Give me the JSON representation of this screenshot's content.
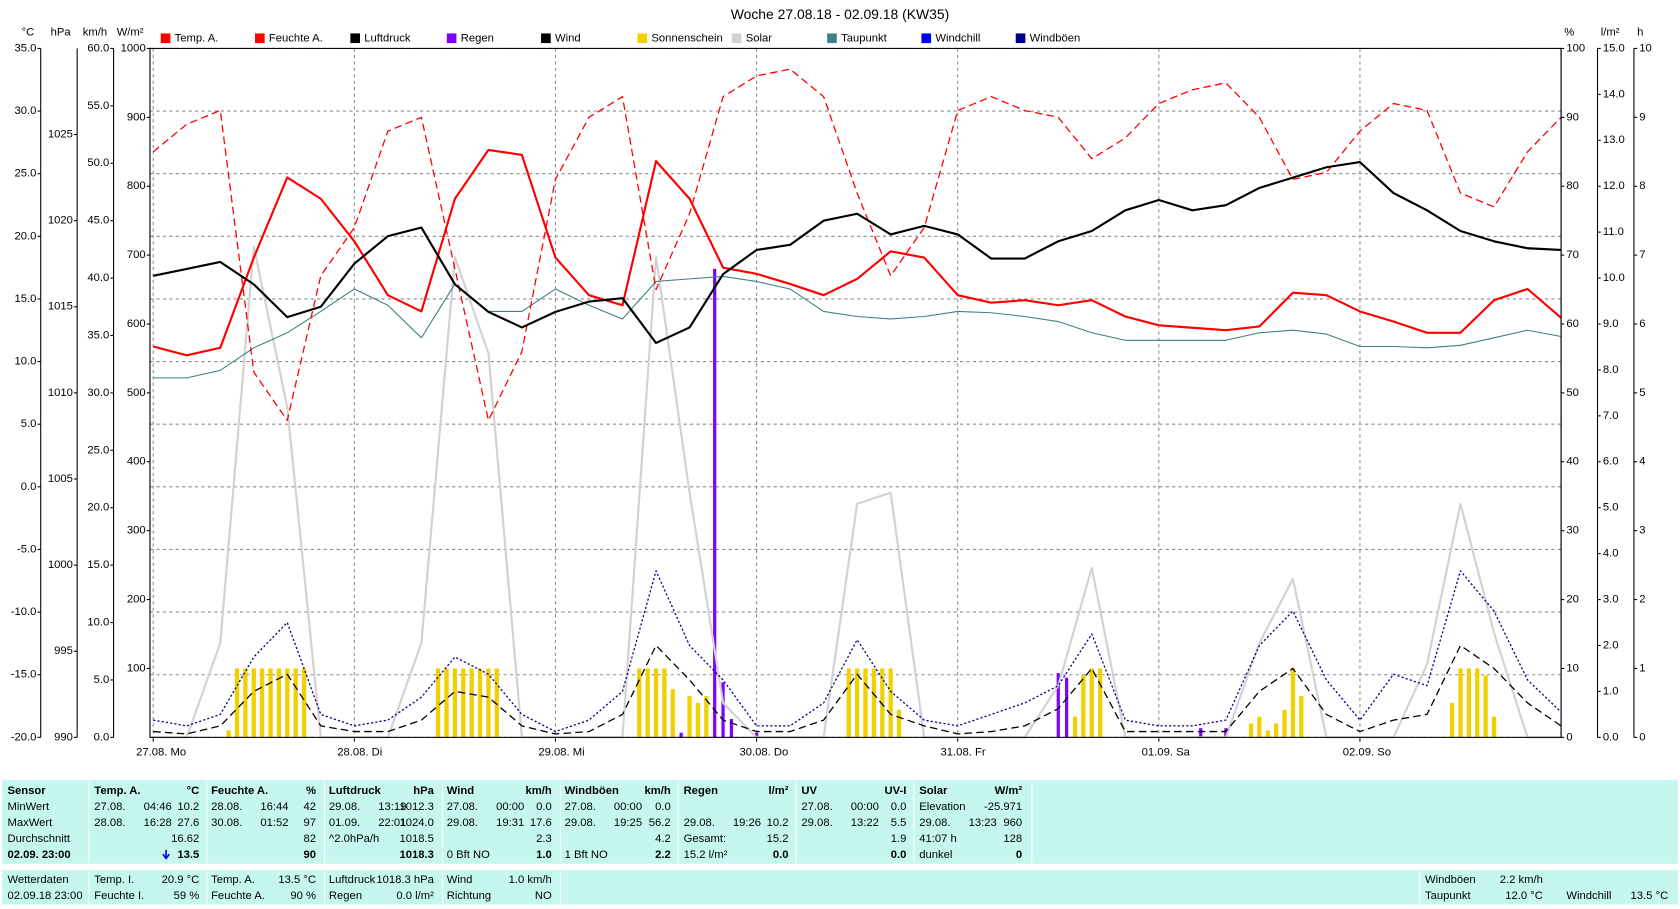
{
  "chart_data": {
    "type": "line",
    "title": "Woche 27.08.18 - 02.09.18 (KW35)",
    "x": [
      0,
      4,
      8,
      12,
      16,
      20,
      24,
      28,
      32,
      36,
      40,
      44,
      48,
      52,
      56,
      60,
      64,
      68,
      72,
      76,
      80,
      84,
      88,
      92,
      96,
      100,
      104,
      108,
      112,
      116,
      120,
      124,
      128,
      132,
      136,
      140,
      144,
      148,
      152,
      156,
      160,
      164,
      168
    ],
    "xlim": [
      0,
      168
    ],
    "xticks": [
      {
        "value": 0,
        "label": "27.08. Mo"
      },
      {
        "value": 24,
        "label": "28.08. Di"
      },
      {
        "value": 48,
        "label": "29.08. Mi"
      },
      {
        "value": 72,
        "label": "30.08. Do"
      },
      {
        "value": 96,
        "label": "31.08. Fr"
      },
      {
        "value": 120,
        "label": "01.09. Sa"
      },
      {
        "value": 144,
        "label": "02.09. So"
      }
    ],
    "grid": true,
    "axes": [
      {
        "id": "temp",
        "label": "°C",
        "side": "left",
        "color": "#ff0000",
        "grid": true,
        "lim": [
          -20,
          35
        ],
        "ticks": [
          {
            "value": -20,
            "label": "-20.0"
          },
          {
            "value": -15,
            "label": "-15.0"
          },
          {
            "value": -10,
            "label": "-10.0"
          },
          {
            "value": -5,
            "label": "-5.0"
          },
          {
            "value": 0,
            "label": "0.0"
          },
          {
            "value": 5,
            "label": "5.0"
          },
          {
            "value": 10,
            "label": "10.0"
          },
          {
            "value": 15,
            "label": "15.0"
          },
          {
            "value": 20,
            "label": "20.0"
          },
          {
            "value": 25,
            "label": "25.0"
          },
          {
            "value": 30,
            "label": "30.0"
          },
          {
            "value": 35,
            "label": "35.0"
          }
        ]
      },
      {
        "id": "press",
        "label": "hPa",
        "side": "left",
        "color": "#000000",
        "grid": false,
        "lim": [
          990,
          1030
        ],
        "ticks": [
          990,
          995,
          1000,
          1005,
          1010,
          1015,
          1020,
          1025
        ]
      },
      {
        "id": "wind",
        "label": "km/h",
        "side": "left",
        "color": "#000000",
        "grid": false,
        "lim": [
          0,
          60
        ],
        "ticks": [
          {
            "value": 0,
            "label": "0.0"
          },
          {
            "value": 5,
            "label": "5.0"
          },
          {
            "value": 10,
            "label": "10.0"
          },
          {
            "value": 15,
            "label": "15.0"
          },
          {
            "value": 20,
            "label": "20.0"
          },
          {
            "value": 25,
            "label": "25.0"
          },
          {
            "value": 30,
            "label": "30.0"
          },
          {
            "value": 35,
            "label": "35.0"
          },
          {
            "value": 40,
            "label": "40.0"
          },
          {
            "value": 45,
            "label": "45.0"
          },
          {
            "value": 50,
            "label": "50.0"
          },
          {
            "value": 55,
            "label": "55.0"
          },
          {
            "value": 60,
            "label": "60.0"
          }
        ]
      },
      {
        "id": "solar",
        "label": "W/m²",
        "side": "left",
        "color": "#c8c8c8",
        "grid": false,
        "lim": [
          0,
          1000
        ],
        "ticks": [
          100,
          200,
          300,
          400,
          500,
          600,
          700,
          800,
          900,
          1000
        ]
      },
      {
        "id": "hum",
        "label": "%",
        "side": "right",
        "color": "#ff0000",
        "grid": false,
        "lim": [
          0,
          100
        ],
        "ticks": [
          0,
          10,
          20,
          30,
          40,
          50,
          60,
          70,
          80,
          90,
          100
        ]
      },
      {
        "id": "rain",
        "label": "l/m²",
        "side": "right",
        "color": "#8000ff",
        "grid": false,
        "lim": [
          0,
          15
        ],
        "ticks": [
          {
            "value": 0,
            "label": "0.0"
          },
          {
            "value": 1,
            "label": "1.0"
          },
          {
            "value": 2,
            "label": "2.0"
          },
          {
            "value": 3,
            "label": "3.0"
          },
          {
            "value": 4,
            "label": "4.0"
          },
          {
            "value": 5,
            "label": "5.0"
          },
          {
            "value": 6,
            "label": "6.0"
          },
          {
            "value": 7,
            "label": "7.0"
          },
          {
            "value": 8,
            "label": "8.0"
          },
          {
            "value": 9,
            "label": "9.0"
          },
          {
            "value": 10,
            "label": "10.0"
          },
          {
            "value": 11,
            "label": "11.0"
          },
          {
            "value": 12,
            "label": "12.0"
          },
          {
            "value": 13,
            "label": "13.0"
          },
          {
            "value": 14,
            "label": "14.0"
          },
          {
            "value": 15,
            "label": "15.0"
          }
        ]
      },
      {
        "id": "sun",
        "label": "h",
        "side": "right",
        "color": "#e0c000",
        "grid": false,
        "lim": [
          0,
          10
        ],
        "ticks": [
          0,
          1,
          2,
          3,
          4,
          5,
          6,
          7,
          8,
          9,
          10
        ]
      }
    ],
    "series": [
      {
        "name": "Temp. A.",
        "color": "#ff0000",
        "axis": "temp",
        "style": "solid",
        "kind": "line",
        "values": [
          11.2,
          10.5,
          11.1,
          18.3,
          24.7,
          23.0,
          19.6,
          15.3,
          14.0,
          23.0,
          26.9,
          26.5,
          18.3,
          15.3,
          14.5,
          26.0,
          23.0,
          17.5,
          17.0,
          16.2,
          15.3,
          16.6,
          18.8,
          18.3,
          15.3,
          14.7,
          14.9,
          14.5,
          14.9,
          13.6,
          12.9,
          12.7,
          12.5,
          12.8,
          15.5,
          15.3,
          14.0,
          13.2,
          12.3,
          12.3,
          14.9,
          15.8,
          13.5
        ]
      },
      {
        "name": "Feuchte A.",
        "color": "#ff0000",
        "axis": "hum",
        "style": "dashed",
        "kind": "line",
        "values": [
          85,
          89,
          91,
          53,
          46,
          67,
          74,
          88,
          90,
          68,
          46,
          56,
          81,
          90,
          93,
          65,
          76,
          93,
          96,
          97,
          93,
          79,
          67,
          74,
          91,
          93,
          91,
          90,
          84,
          87,
          92,
          94,
          95,
          90,
          81,
          82,
          88,
          92,
          91,
          79,
          77,
          85,
          90
        ]
      },
      {
        "name": "Luftdruck",
        "color": "#000000",
        "axis": "press",
        "style": "solid",
        "kind": "line",
        "values": [
          1016.8,
          1017.2,
          1017.6,
          1016.3,
          1014.4,
          1015.0,
          1017.5,
          1019.1,
          1019.6,
          1016.3,
          1014.7,
          1013.8,
          1014.7,
          1015.3,
          1015.5,
          1012.9,
          1013.8,
          1016.9,
          1018.3,
          1018.6,
          1020.0,
          1020.4,
          1019.2,
          1019.7,
          1019.2,
          1017.8,
          1017.8,
          1018.8,
          1019.4,
          1020.6,
          1021.2,
          1020.6,
          1020.9,
          1021.9,
          1022.5,
          1023.1,
          1023.4,
          1021.6,
          1020.6,
          1019.4,
          1018.8,
          1018.4,
          1018.3
        ]
      },
      {
        "name": "Regen",
        "color": "#8000ff",
        "axis": "rain",
        "style": "solid",
        "kind": "bar",
        "x": [
          63,
          67,
          68,
          69,
          72,
          108,
          109,
          125,
          128
        ],
        "values": [
          0.1,
          10.2,
          1.2,
          0.4,
          0.1,
          1.4,
          1.3,
          0.2,
          0.2
        ]
      },
      {
        "name": "Wind",
        "color": "#000000",
        "axis": "wind",
        "style": "dashed",
        "kind": "line",
        "values": [
          0.5,
          0.3,
          1.0,
          4.0,
          5.5,
          1.0,
          0.5,
          0.5,
          1.5,
          4.0,
          3.5,
          1.0,
          0.3,
          0.5,
          2.0,
          8.0,
          5.0,
          1.5,
          0.5,
          0.5,
          1.5,
          5.5,
          2.0,
          1.0,
          0.3,
          0.5,
          1.0,
          2.5,
          6.0,
          0.5,
          0.5,
          0.5,
          0.5,
          4.0,
          6.0,
          2.0,
          0.5,
          1.5,
          2.0,
          8.0,
          6.0,
          3.0,
          1.0
        ]
      },
      {
        "name": "Sonnenschein",
        "color": "#f0d000",
        "axis": "sun",
        "style": "solid",
        "kind": "bar",
        "x": [
          9,
          10,
          11,
          12,
          13,
          14,
          15,
          16,
          17,
          18,
          34,
          35,
          36,
          37,
          38,
          39,
          40,
          41,
          58,
          59,
          60,
          61,
          62,
          64,
          65,
          66,
          83,
          84,
          85,
          86,
          87,
          88,
          89,
          110,
          111,
          112,
          113,
          131,
          132,
          133,
          134,
          135,
          136,
          137,
          155,
          156,
          157,
          158,
          159,
          160
        ],
        "values": [
          0.1,
          1,
          1,
          1,
          1,
          1,
          1,
          1,
          1,
          1,
          1,
          1,
          1,
          1,
          1,
          1,
          1,
          1,
          1,
          1,
          1,
          1,
          0.7,
          0.6,
          0.5,
          0.6,
          1,
          1,
          1,
          1,
          1,
          1,
          0.4,
          0.3,
          0.9,
          1,
          1,
          0.2,
          0.3,
          0.1,
          0.2,
          0.4,
          1,
          0.6,
          0.5,
          1,
          1,
          1,
          0.9,
          0.3
        ]
      },
      {
        "name": "Solar",
        "color": "#d2d2d2",
        "axis": "solar",
        "style": "solid",
        "kind": "line",
        "values": [
          0,
          0,
          137,
          712,
          479,
          0,
          0,
          0,
          137,
          697,
          557,
          0,
          0,
          0,
          0,
          697,
          355,
          50,
          0,
          0,
          0,
          339,
          355,
          0,
          0,
          0,
          0,
          75,
          246,
          0,
          0,
          0,
          0,
          137,
          230,
          0,
          0,
          0,
          106,
          339,
          152,
          0,
          0
        ]
      },
      {
        "name": "Taupunkt",
        "color": "#408080",
        "axis": "temp",
        "style": "solid",
        "kind": "line",
        "values": [
          8.7,
          8.7,
          9.3,
          11.1,
          12.3,
          14.0,
          15.8,
          14.5,
          11.9,
          16.2,
          14.0,
          14.0,
          15.8,
          14.5,
          13.4,
          16.4,
          16.6,
          16.8,
          16.4,
          15.8,
          14.0,
          13.6,
          13.4,
          13.6,
          14.0,
          13.9,
          13.6,
          13.2,
          12.3,
          11.7,
          11.7,
          11.7,
          11.7,
          12.3,
          12.5,
          12.2,
          11.2,
          11.2,
          11.1,
          11.3,
          11.9,
          12.5,
          12.0
        ]
      },
      {
        "name": "Windchill",
        "color": "#0000ff",
        "axis": "temp",
        "style": "solid",
        "kind": "line",
        "values": [
          11.2,
          10.5,
          11.1,
          18.3,
          24.7,
          23.0,
          19.6,
          15.3,
          14.0,
          23.0,
          26.9,
          26.5,
          18.3,
          15.3,
          14.5,
          26.0,
          23.0,
          17.5,
          17.0,
          16.2,
          15.3,
          16.6,
          18.8,
          18.3,
          15.3,
          14.7,
          14.9,
          14.5,
          14.9,
          13.6,
          12.9,
          12.7,
          12.5,
          12.8,
          15.5,
          15.3,
          14.0,
          13.2,
          12.3,
          12.3,
          14.9,
          15.8,
          13.5
        ]
      },
      {
        "name": "Windböen",
        "color": "#000090",
        "axis": "wind",
        "style": "dotted",
        "kind": "line",
        "values": [
          1.5,
          1.0,
          2.0,
          7.0,
          10.0,
          2.0,
          1.0,
          1.5,
          3.5,
          7.0,
          5.5,
          2.0,
          0.5,
          1.5,
          4.0,
          14.5,
          8.0,
          5.0,
          1.0,
          1.0,
          3.0,
          8.5,
          4.0,
          1.5,
          1.0,
          2.0,
          3.0,
          4.5,
          9.0,
          1.5,
          1.0,
          1.0,
          1.5,
          8.0,
          11.0,
          5.0,
          1.5,
          5.5,
          4.5,
          14.5,
          11.0,
          5.0,
          2.2
        ]
      }
    ]
  },
  "summary": {
    "groups": [
      {
        "header": [
          "Sensor"
        ],
        "lines": [
          [
            "MinWert"
          ],
          [
            "MaxWert"
          ],
          [
            "Durchschnitt"
          ],
          [
            "02.09. 23:00"
          ]
        ]
      },
      {
        "header": [
          "Temp. A.",
          "°C"
        ],
        "lines": [
          [
            "27.08.",
            "04:46",
            "10.2"
          ],
          [
            "28.08.",
            "16:28",
            "27.6"
          ],
          [
            "16.62"
          ],
          [
            "13.5"
          ]
        ]
      },
      {
        "header": [
          "Feuchte A.",
          "%"
        ],
        "lines": [
          [
            "28.08.",
            "16:44",
            "42"
          ],
          [
            "30.08.",
            "01:52",
            "97"
          ],
          [
            "82"
          ],
          [
            "90"
          ]
        ]
      },
      {
        "header": [
          "Luftdruck",
          "hPa"
        ],
        "lines": [
          [
            "29.08.",
            "13:19",
            "1012.3"
          ],
          [
            "01.09.",
            "22:01",
            "1024.0"
          ],
          [
            "^2.0hPa/h",
            "1018.5"
          ],
          [
            "1018.3"
          ]
        ]
      },
      {
        "header": [
          "Wind",
          "km/h"
        ],
        "lines": [
          [
            "27.08.",
            "00:00",
            "0.0"
          ],
          [
            "29.08.",
            "19:31",
            "17.6"
          ],
          [
            "2.3"
          ],
          [
            "0 Bft NO",
            "1.0"
          ]
        ]
      },
      {
        "header": [
          "Windböen",
          "km/h"
        ],
        "lines": [
          [
            "27.08.",
            "00:00",
            "0.0"
          ],
          [
            "29.08.",
            "19:25",
            "56.2"
          ],
          [
            "4.2"
          ],
          [
            "1 Bft NO",
            "2.2"
          ]
        ]
      },
      {
        "header": [
          "Regen",
          "l/m²"
        ],
        "lines": [
          null,
          [
            "29.08.",
            "19:26",
            "10.2"
          ],
          [
            "Gesamt:",
            "15.2"
          ],
          [
            "15.2 l/m²",
            "0.0"
          ]
        ]
      },
      {
        "header": [
          "UV",
          "UV-I"
        ],
        "lines": [
          [
            "27.08.",
            "00:00",
            "0.0"
          ],
          [
            "29.08.",
            "13:22",
            "5.5"
          ],
          [
            "1.9"
          ],
          [
            "0.0"
          ]
        ]
      },
      {
        "header": [
          "Solar",
          "W/m²"
        ],
        "lines": [
          [
            "Elevation",
            "-25.971"
          ],
          [
            "29.08.",
            "13:23",
            "960"
          ],
          [
            "41:07 h",
            "128"
          ],
          [
            "dunkel",
            "0"
          ]
        ]
      }
    ]
  },
  "current": {
    "groups": [
      {
        "lines": [
          [
            "Wetterdaten"
          ],
          [
            "02.09.18 23:00"
          ]
        ]
      },
      {
        "lines": [
          [
            "Temp. I.",
            "20.9 °C"
          ],
          [
            "Feuchte I.",
            "59 %"
          ]
        ]
      },
      {
        "lines": [
          [
            "Temp. A.",
            "13.5 °C"
          ],
          [
            "Feuchte A.",
            "90 %"
          ]
        ]
      },
      {
        "lines": [
          [
            "Luftdruck",
            "1018.3 hPa"
          ],
          [
            "Regen",
            "0.0 l/m²"
          ]
        ]
      },
      {
        "lines": [
          [
            "Wind",
            "1.0 km/h"
          ],
          [
            "Richtung",
            "NO"
          ]
        ]
      },
      {
        "lines": [
          [
            "Windböen",
            "2.2 km/h"
          ],
          [
            "Taupunkt",
            "12.0 °C"
          ]
        ]
      },
      {
        "lines": [
          null,
          [
            "Windchill",
            "13.5 °C"
          ]
        ]
      }
    ]
  }
}
